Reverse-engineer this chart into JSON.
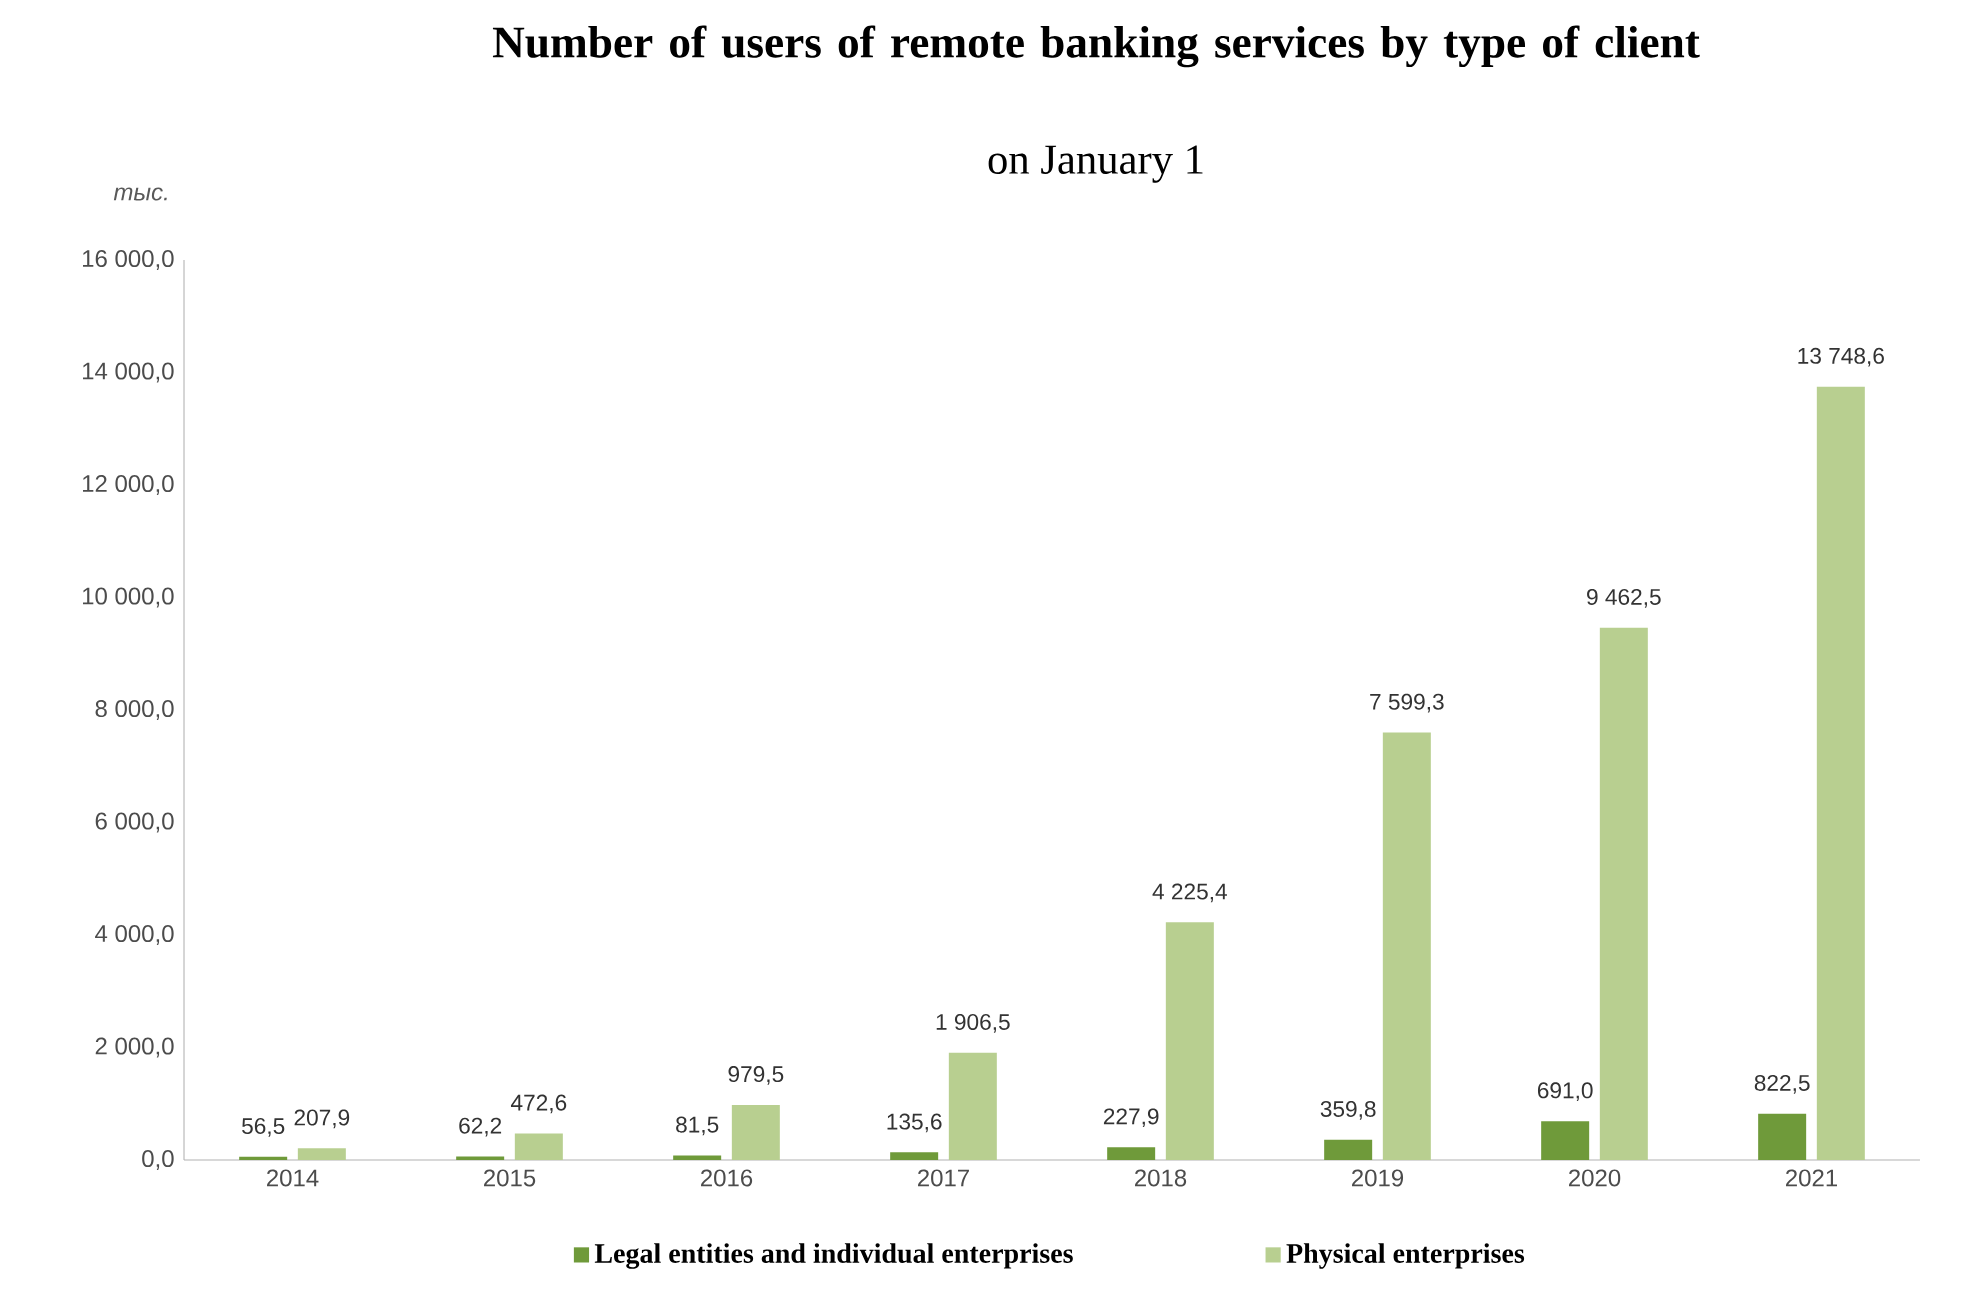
{
  "chart_data": {
    "type": "bar",
    "title": "Number of users of remote banking services by type of client",
    "subtitle": "on January 1",
    "ylabel": "тыс.",
    "categories": [
      "2014",
      "2015",
      "2016",
      "2017",
      "2018",
      "2019",
      "2020",
      "2021"
    ],
    "series": [
      {
        "name": "Legal entities and individual enterprises",
        "color": "#6f9a3a",
        "values": [
          56.5,
          62.2,
          81.5,
          135.6,
          227.9,
          359.8,
          691.0,
          822.5
        ],
        "value_labels": [
          "56,5",
          "62,2",
          "81,5",
          "135,6",
          "227,9",
          "359,8",
          "691,0",
          "822,5"
        ]
      },
      {
        "name": "Physical enterprises",
        "color": "#b8cf90",
        "values": [
          207.9,
          472.6,
          979.5,
          1906.5,
          4225.4,
          7599.3,
          9462.5,
          13748.6
        ],
        "value_labels": [
          "207,9",
          "472,6",
          "979,5",
          "1 906,5",
          "4 225,4",
          "7 599,3",
          "9 462,5",
          "13 748,6"
        ]
      }
    ],
    "ylim": [
      0,
      16000
    ],
    "yticks": [
      {
        "value": 0,
        "label": "0,0"
      },
      {
        "value": 2000,
        "label": "2 000,0"
      },
      {
        "value": 4000,
        "label": "4 000,0"
      },
      {
        "value": 6000,
        "label": "6 000,0"
      },
      {
        "value": 8000,
        "label": "8 000,0"
      },
      {
        "value": 10000,
        "label": "10 000,0"
      },
      {
        "value": 12000,
        "label": "12 000,0"
      },
      {
        "value": 14000,
        "label": "14 000,0"
      },
      {
        "value": 16000,
        "label": "16 000,0"
      }
    ],
    "legend": "bottom",
    "grid": false
  }
}
